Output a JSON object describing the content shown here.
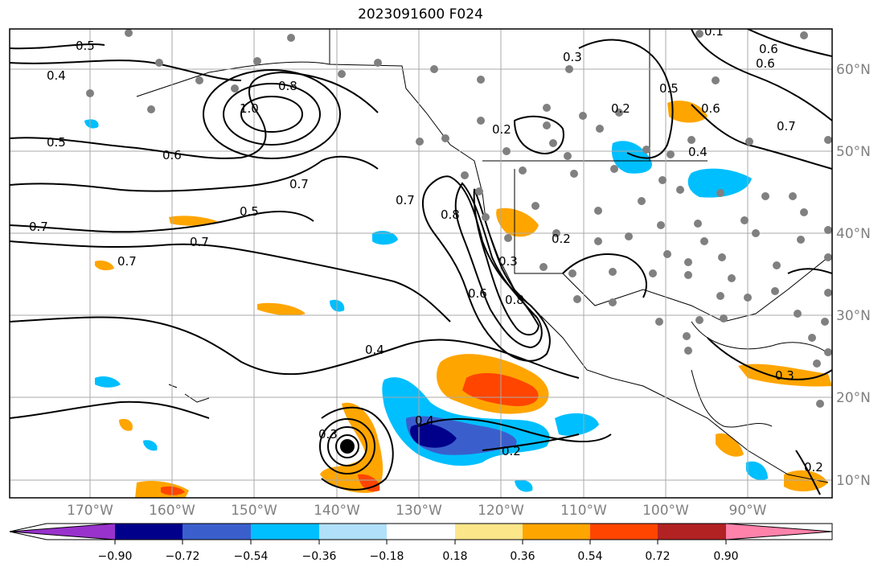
{
  "title": "2023091600 F024",
  "longitude_labels": [
    "170°W",
    "160°W",
    "150°W",
    "140°W",
    "130°W",
    "120°W",
    "110°W",
    "100°W",
    "90°W"
  ],
  "latitude_labels": [
    "60°N",
    "50°N",
    "40°N",
    "30°N",
    "20°N",
    "10°N"
  ],
  "colorbar": {
    "ticks": [
      "−0.90",
      "−0.72",
      "−0.54",
      "−0.36",
      "−0.18",
      "0.18",
      "0.36",
      "0.54",
      "0.72",
      "0.90"
    ],
    "colors": [
      "#9932cc",
      "#00008b",
      "#3a5fcd",
      "#00bfff",
      "#b0e0fa",
      "#ffffff",
      "#fce68a",
      "#ffa500",
      "#ff4500",
      "#b22222",
      "#ff82ab"
    ]
  },
  "contour_labels": [
    {
      "text": "0.5"
    },
    {
      "text": "0.4"
    },
    {
      "text": "0.5"
    },
    {
      "text": "0.6"
    },
    {
      "text": "0.8"
    },
    {
      "text": "1.0"
    },
    {
      "text": "0.7"
    },
    {
      "text": "0.5"
    },
    {
      "text": "0.7"
    },
    {
      "text": "0.7"
    },
    {
      "text": "0.7"
    },
    {
      "text": "0.7"
    },
    {
      "text": "0.8"
    },
    {
      "text": "0.3"
    },
    {
      "text": "0.2"
    },
    {
      "text": "0.2"
    },
    {
      "text": "0.5"
    },
    {
      "text": "0.6"
    },
    {
      "text": "0.4"
    },
    {
      "text": "0.7"
    },
    {
      "text": "0.6"
    },
    {
      "text": "0.2"
    },
    {
      "text": "0.3"
    },
    {
      "text": "0.6"
    },
    {
      "text": "0.8"
    },
    {
      "text": "0.4"
    },
    {
      "text": "0.3"
    },
    {
      "text": "0.4"
    },
    {
      "text": "0.2"
    },
    {
      "text": "0.3"
    },
    {
      "text": "0.2"
    },
    {
      "text": "0.1"
    },
    {
      "text": "0.6"
    }
  ],
  "station_markers": "grey dots",
  "storm_center": "black dot"
}
